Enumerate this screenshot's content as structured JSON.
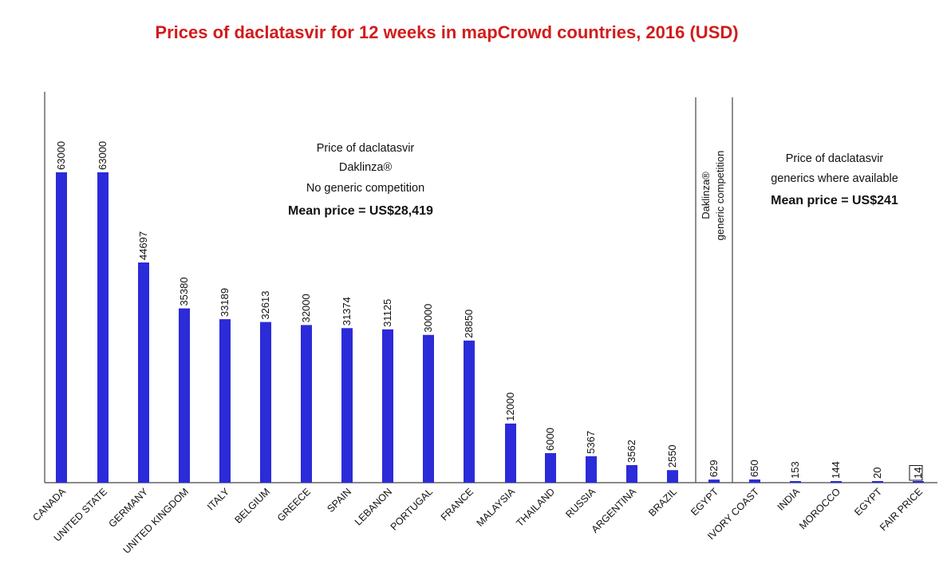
{
  "chart_data": {
    "type": "bar",
    "title": "Prices of daclatasvir for 12 weeks in mapCrowd countries, 2016 (USD)",
    "xlabel": "",
    "ylabel": "",
    "ylim": [
      0,
      70000
    ],
    "grid": false,
    "legend": "none",
    "colors": {
      "bar": "#2b2bd9",
      "title": "#d21c1c",
      "text": "#111111",
      "axis": "#444444"
    },
    "categories": [
      "CANADA",
      "UNITED STATE",
      "GERMANY",
      "UNITED KINGDOM",
      "ITALY",
      "BELGIUM",
      "GREECE",
      "SPAIN",
      "LEBANON",
      "PORTUGAL",
      "FRANCE",
      "MALAYSIA",
      "THAILAND",
      "RUSSIA",
      "ARGENTINA",
      "BRAZIL",
      "EGYPT",
      "IVORY COAST",
      "INDIA",
      "MOROCCO",
      "EGYPT",
      "FAIR PRICE"
    ],
    "values": [
      63000,
      63000,
      44697,
      35380,
      33189,
      32613,
      32000,
      31374,
      31125,
      30000,
      28850,
      12000,
      6000,
      5367,
      3562,
      2550,
      629,
      650,
      153,
      144,
      20,
      14
    ],
    "value_labels": [
      "63000",
      "63000",
      "44697",
      "35380",
      "33189",
      "32613",
      "32000",
      "31374",
      "31125",
      "30000",
      "28850",
      "12000",
      "6000",
      "5367",
      "3562",
      "2550",
      "629",
      "650",
      "153",
      "144",
      "20",
      "14"
    ],
    "groups": [
      {
        "name": "Daklinza no generic competition",
        "start": 0,
        "end": 15,
        "annotation": [
          "Price of daclatasvir",
          "Daklinza®",
          "No generic competition"
        ],
        "mean_label": "Mean price = US$28,419"
      },
      {
        "name": "Daklinza generic competition",
        "start": 16,
        "end": 16,
        "annotation": [
          "Daklinza®",
          "generic competition"
        ]
      },
      {
        "name": "Generics",
        "start": 17,
        "end": 21,
        "annotation": [
          "Price of daclatasvir",
          "generics where available"
        ],
        "mean_label": "Mean price = US$241"
      }
    ],
    "boxed_category": "FAIR PRICE"
  }
}
